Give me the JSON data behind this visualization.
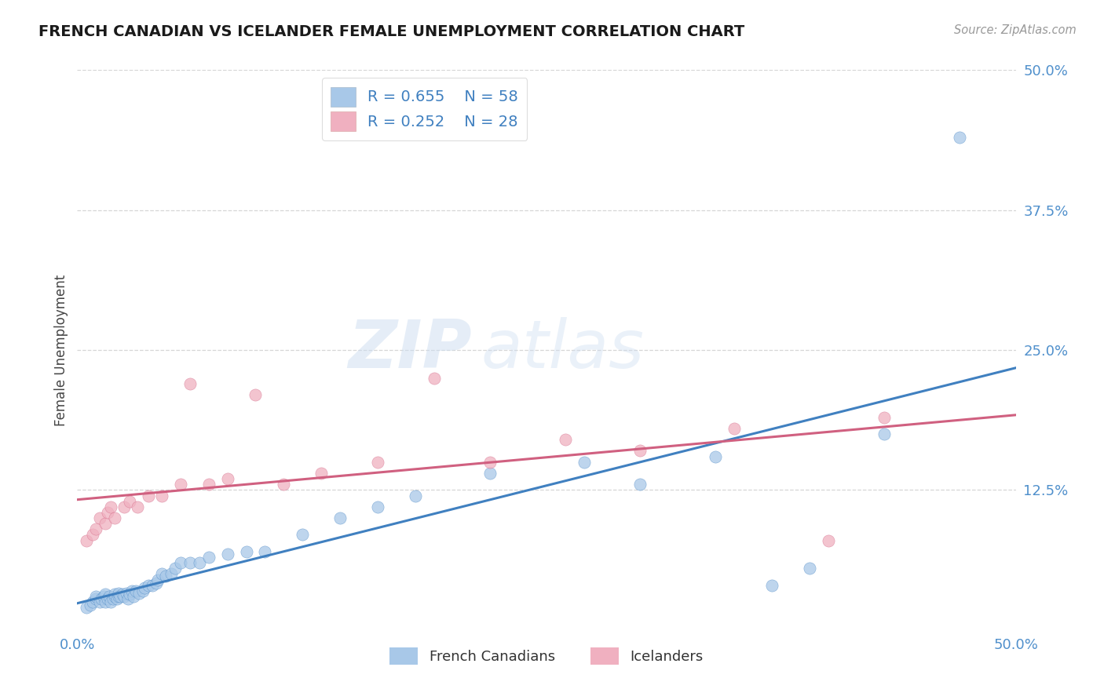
{
  "title": "FRENCH CANADIAN VS ICELANDER FEMALE UNEMPLOYMENT CORRELATION CHART",
  "source_text": "Source: ZipAtlas.com",
  "ylabel": "Female Unemployment",
  "xlim": [
    0.0,
    0.5
  ],
  "ylim": [
    0.0,
    0.5
  ],
  "xticks": [
    0.0,
    0.125,
    0.25,
    0.375,
    0.5
  ],
  "xticklabels": [
    "0.0%",
    "",
    "",
    "",
    "50.0%"
  ],
  "yticks": [
    0.125,
    0.25,
    0.375,
    0.5
  ],
  "yticklabels": [
    "12.5%",
    "25.0%",
    "37.5%",
    "50.0%"
  ],
  "legend_R1": "R = 0.655",
  "legend_N1": "N = 58",
  "legend_R2": "R = 0.252",
  "legend_N2": "N = 28",
  "legend_label1": "French Canadians",
  "legend_label2": "Icelanders",
  "blue_color": "#a8c8e8",
  "pink_color": "#f0b0c0",
  "line_blue": "#4080c0",
  "line_pink": "#d06080",
  "watermark_zip": "ZIP",
  "watermark_atlas": "atlas",
  "french_x": [
    0.005,
    0.007,
    0.008,
    0.01,
    0.01,
    0.012,
    0.013,
    0.014,
    0.015,
    0.015,
    0.016,
    0.017,
    0.018,
    0.019,
    0.02,
    0.02,
    0.021,
    0.022,
    0.022,
    0.023,
    0.024,
    0.025,
    0.026,
    0.027,
    0.028,
    0.029,
    0.03,
    0.031,
    0.033,
    0.035,
    0.036,
    0.038,
    0.04,
    0.042,
    0.043,
    0.045,
    0.047,
    0.05,
    0.052,
    0.055,
    0.06,
    0.065,
    0.07,
    0.08,
    0.09,
    0.1,
    0.12,
    0.14,
    0.16,
    0.18,
    0.22,
    0.27,
    0.3,
    0.34,
    0.37,
    0.39,
    0.43,
    0.47
  ],
  "french_y": [
    0.02,
    0.022,
    0.025,
    0.028,
    0.03,
    0.025,
    0.028,
    0.03,
    0.025,
    0.032,
    0.028,
    0.03,
    0.025,
    0.028,
    0.03,
    0.032,
    0.028,
    0.03,
    0.033,
    0.03,
    0.032,
    0.03,
    0.033,
    0.028,
    0.032,
    0.035,
    0.03,
    0.035,
    0.033,
    0.035,
    0.038,
    0.04,
    0.04,
    0.042,
    0.045,
    0.05,
    0.048,
    0.05,
    0.055,
    0.06,
    0.06,
    0.06,
    0.065,
    0.068,
    0.07,
    0.07,
    0.085,
    0.1,
    0.11,
    0.12,
    0.14,
    0.15,
    0.13,
    0.155,
    0.04,
    0.055,
    0.175,
    0.44
  ],
  "iceland_x": [
    0.005,
    0.008,
    0.01,
    0.012,
    0.015,
    0.016,
    0.018,
    0.02,
    0.025,
    0.028,
    0.032,
    0.038,
    0.045,
    0.055,
    0.06,
    0.07,
    0.08,
    0.095,
    0.11,
    0.13,
    0.16,
    0.19,
    0.22,
    0.26,
    0.3,
    0.35,
    0.4,
    0.43
  ],
  "iceland_y": [
    0.08,
    0.085,
    0.09,
    0.1,
    0.095,
    0.105,
    0.11,
    0.1,
    0.11,
    0.115,
    0.11,
    0.12,
    0.12,
    0.13,
    0.22,
    0.13,
    0.135,
    0.21,
    0.13,
    0.14,
    0.15,
    0.225,
    0.15,
    0.17,
    0.16,
    0.18,
    0.08,
    0.19
  ]
}
